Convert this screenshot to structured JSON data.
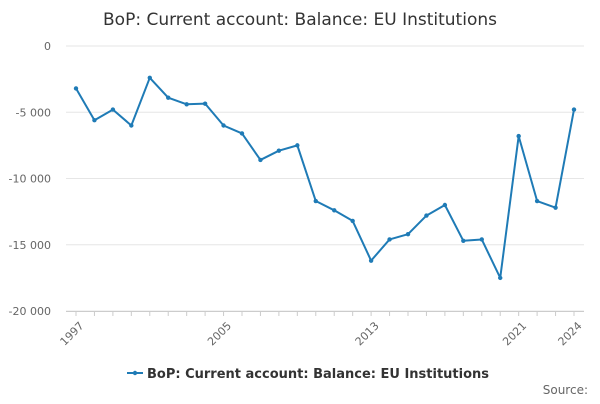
{
  "chart_data": {
    "type": "line",
    "title": "BoP: Current account: Balance: EU Institutions",
    "xlabel": "",
    "ylabel": "",
    "x": [
      1997,
      1998,
      1999,
      2000,
      2001,
      2002,
      2003,
      2004,
      2005,
      2006,
      2007,
      2008,
      2009,
      2010,
      2011,
      2012,
      2013,
      2014,
      2015,
      2016,
      2017,
      2018,
      2019,
      2020,
      2021,
      2022,
      2023,
      2024
    ],
    "x_tick_labels": [
      "1997",
      "2005",
      "2013",
      "2021",
      "2024"
    ],
    "x_ticks": [
      1997,
      2005,
      2013,
      2021,
      2024
    ],
    "y_tick_labels": [
      "0",
      "-5 000",
      "-10 000",
      "-15 000",
      "-20 000"
    ],
    "y_ticks": [
      0,
      -5000,
      -10000,
      -15000,
      -20000
    ],
    "ylim": [
      -20000,
      0
    ],
    "xlim": [
      1997,
      2024
    ],
    "grid": true,
    "legend_position": "bottom",
    "series": [
      {
        "name": "BoP: Current account: Balance: EU Institutions",
        "color": "#1f7bb6",
        "values": [
          -3200,
          -5600,
          -4800,
          -6000,
          -2400,
          -3900,
          -4400,
          -4350,
          -6000,
          -6600,
          -8600,
          -7900,
          -7500,
          -11700,
          -12400,
          -13200,
          -16200,
          -14600,
          -14200,
          -12800,
          -12000,
          -14700,
          -14600,
          -17500,
          -6800,
          -11700,
          -12200,
          -4800
        ]
      }
    ]
  },
  "footer": {
    "source_label": "Source:"
  }
}
